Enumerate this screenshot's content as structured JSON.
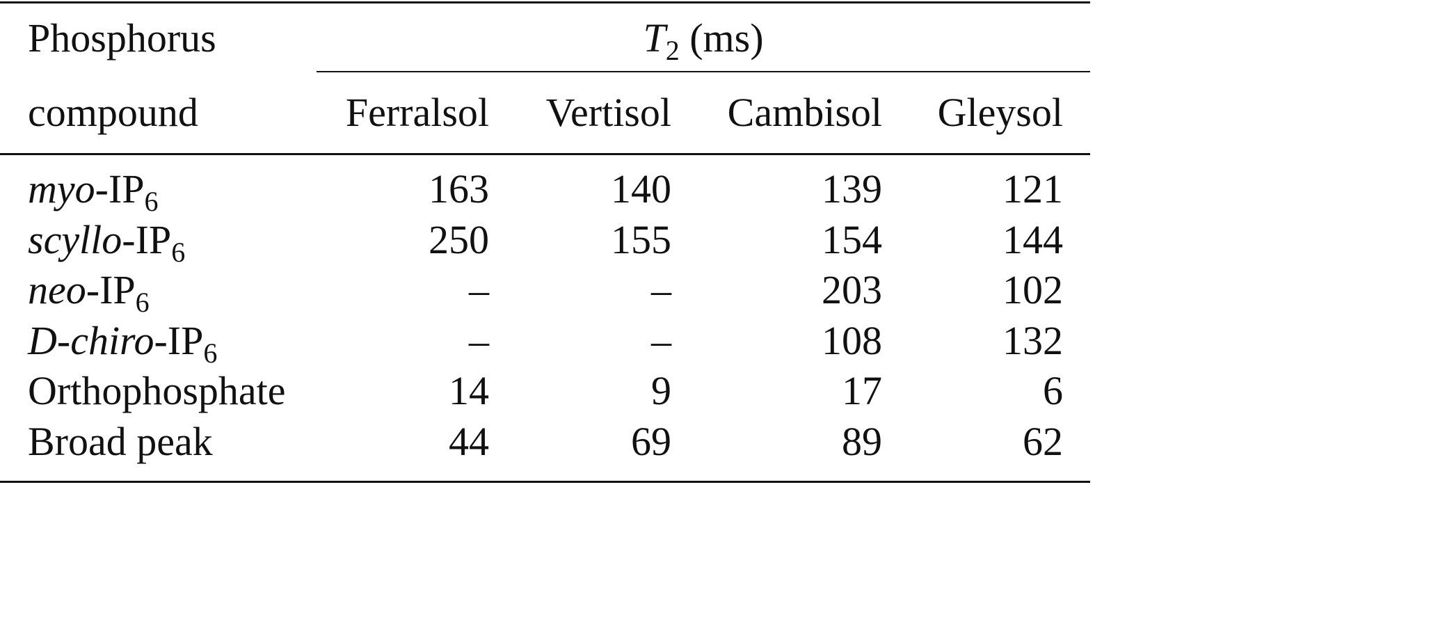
{
  "table": {
    "header": {
      "row_label_line1": "Phosphorus",
      "row_label_line2": "compound",
      "group_label_main": "T",
      "group_label_sub": "2",
      "group_label_unit": " (ms)",
      "columns": [
        "Ferralsol",
        "Vertisol",
        "Cambisol",
        "Gleysol"
      ]
    },
    "rows": [
      {
        "prefix": "myo",
        "name": "-IP",
        "sub": "6",
        "values": [
          "163",
          "140",
          "139",
          "121"
        ]
      },
      {
        "prefix": "scyllo",
        "name": "-IP",
        "sub": "6",
        "values": [
          "250",
          "155",
          "154",
          "144"
        ]
      },
      {
        "prefix": "neo",
        "name": "-IP",
        "sub": "6",
        "values": [
          "–",
          "–",
          "203",
          "102"
        ]
      },
      {
        "prefix": "D-chiro",
        "name": "-IP",
        "sub": "6",
        "values": [
          "–",
          "–",
          "108",
          "132"
        ]
      },
      {
        "prefix": "",
        "name": "Orthophosphate",
        "sub": "",
        "values": [
          "14",
          "9",
          "17",
          "6"
        ]
      },
      {
        "prefix": "",
        "name": "Broad peak",
        "sub": "",
        "values": [
          "44",
          "69",
          "89",
          "62"
        ]
      }
    ]
  }
}
